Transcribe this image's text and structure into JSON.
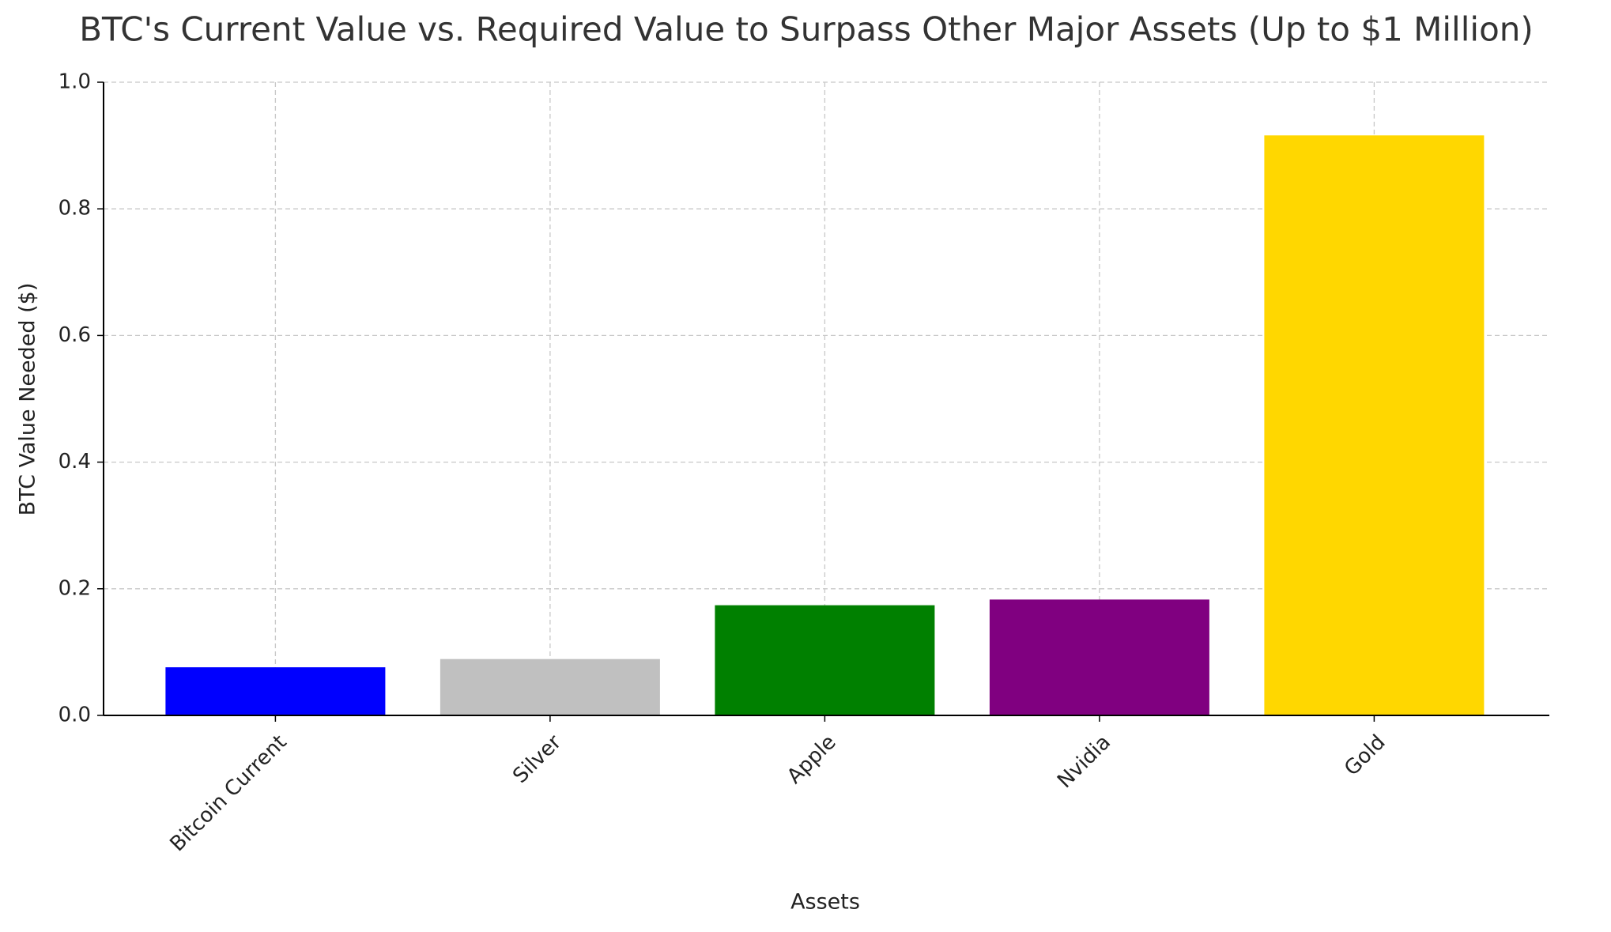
{
  "chart_data": {
    "type": "bar",
    "title": "BTC's Current Value vs. Required Value to Surpass Other Major Assets (Up to $1 Million)",
    "x_label": "Assets",
    "y_label": "BTC Value Needed ($)",
    "categories": [
      "Bitcoin Current",
      "Silver",
      "Apple",
      "Nvidia",
      "Gold"
    ],
    "values": [
      0.076,
      0.089,
      0.174,
      0.183,
      0.916
    ],
    "colors": [
      "#0000ff",
      "#c0c0c0",
      "#008000",
      "#800080",
      "#ffd700"
    ],
    "ylim": [
      0,
      1
    ],
    "yticks": [
      {
        "value": 0,
        "label": "0.0"
      },
      0.2,
      0.4,
      0.6,
      0.8,
      {
        "value": 1,
        "label": "1.0"
      }
    ],
    "grid": true
  }
}
